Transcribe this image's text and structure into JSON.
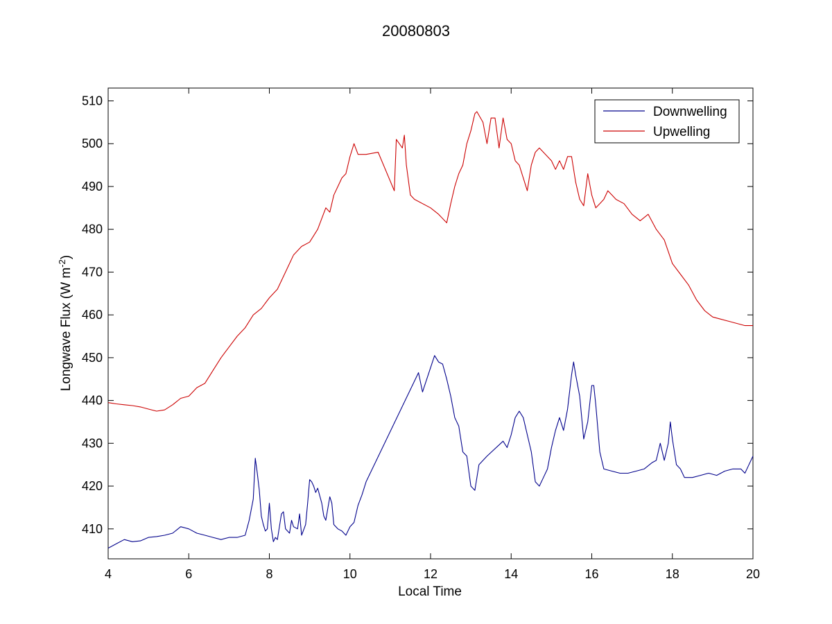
{
  "chart_data": {
    "type": "line",
    "title": "20080803",
    "xlabel": "Local Time",
    "ylabel": "Longwave Flux (W m",
    "ylabel_superscript": "-2",
    "ylabel_suffix": ")",
    "xlim": [
      4,
      20
    ],
    "ylim": [
      403,
      513
    ],
    "xticks": [
      4,
      6,
      8,
      10,
      12,
      14,
      16,
      18,
      20
    ],
    "yticks": [
      410,
      420,
      430,
      440,
      450,
      460,
      470,
      480,
      490,
      500,
      510
    ],
    "grid": false,
    "legend_position": "top-right",
    "series": [
      {
        "name": "Downwelling",
        "color": "#00008b",
        "x": [
          4.0,
          4.2,
          4.4,
          4.6,
          4.8,
          5.0,
          5.2,
          5.4,
          5.6,
          5.8,
          6.0,
          6.2,
          6.4,
          6.6,
          6.8,
          7.0,
          7.2,
          7.4,
          7.5,
          7.6,
          7.65,
          7.7,
          7.75,
          7.8,
          7.85,
          7.9,
          7.95,
          8.0,
          8.05,
          8.1,
          8.15,
          8.2,
          8.3,
          8.35,
          8.4,
          8.5,
          8.55,
          8.6,
          8.7,
          8.75,
          8.8,
          8.9,
          8.95,
          9.0,
          9.05,
          9.1,
          9.15,
          9.2,
          9.3,
          9.35,
          9.4,
          9.5,
          9.55,
          9.6,
          9.7,
          9.8,
          9.9,
          10.0,
          10.1,
          10.2,
          10.3,
          10.4,
          11.7,
          11.8,
          12.1,
          12.2,
          12.3,
          12.4,
          12.5,
          12.6,
          12.7,
          12.8,
          12.9,
          13.0,
          13.1,
          13.2,
          13.4,
          13.8,
          13.9,
          14.0,
          14.1,
          14.2,
          14.3,
          14.4,
          14.5,
          14.6,
          14.7,
          14.8,
          14.9,
          15.0,
          15.1,
          15.2,
          15.3,
          15.4,
          15.5,
          15.55,
          15.6,
          15.7,
          15.8,
          15.9,
          16.0,
          16.05,
          16.1,
          16.2,
          16.3,
          16.5,
          16.7,
          16.9,
          17.1,
          17.3,
          17.5,
          17.6,
          17.7,
          17.8,
          17.9,
          17.95,
          18.0,
          18.1,
          18.2,
          18.3,
          18.5,
          18.7,
          18.9,
          19.1,
          19.3,
          19.5,
          19.7,
          19.8,
          19.9,
          20.0
        ],
        "y": [
          405.5,
          406.5,
          407.5,
          407.0,
          407.2,
          408.0,
          408.2,
          408.5,
          409.0,
          410.5,
          410.0,
          409.0,
          408.5,
          408.0,
          407.5,
          408.0,
          408.0,
          408.5,
          412.0,
          417.0,
          426.5,
          423.0,
          419.0,
          413.0,
          411.0,
          409.5,
          410.0,
          416.0,
          410.0,
          407.0,
          408.0,
          407.5,
          413.5,
          414.0,
          410.0,
          409.0,
          412.0,
          410.5,
          410.0,
          413.5,
          408.5,
          411.0,
          416.0,
          421.5,
          421.0,
          420.0,
          418.5,
          419.5,
          416.0,
          413.0,
          412.0,
          417.5,
          416.0,
          411.0,
          410.0,
          409.5,
          408.5,
          410.5,
          411.5,
          415.5,
          418.0,
          421.0,
          446.5,
          442.0,
          450.5,
          449.0,
          448.5,
          445.0,
          441.0,
          436.0,
          434.0,
          428.0,
          427.0,
          420.0,
          419.0,
          425.0,
          427.0,
          430.5,
          429.0,
          432.0,
          436.0,
          437.5,
          436.0,
          432.0,
          428.0,
          421.0,
          420.0,
          422.0,
          424.0,
          429.0,
          433.0,
          436.0,
          433.0,
          438.0,
          446.0,
          449.0,
          446.0,
          441.0,
          431.0,
          435.0,
          443.5,
          443.5,
          439.0,
          428.0,
          424.0,
          423.5,
          423.0,
          423.0,
          423.5,
          424.0,
          425.5,
          426.0,
          430.0,
          426.0,
          430.0,
          435.0,
          431.0,
          425.0,
          424.0,
          422.0,
          422.0,
          422.5,
          423.0,
          422.5,
          423.5,
          424.0,
          424.0,
          423.0,
          425.0,
          427.0
        ]
      },
      {
        "name": "Upwelling",
        "color": "#cc0000",
        "x": [
          4.0,
          4.2,
          4.4,
          4.6,
          4.8,
          5.0,
          5.2,
          5.4,
          5.6,
          5.8,
          6.0,
          6.2,
          6.4,
          6.6,
          6.8,
          7.0,
          7.2,
          7.4,
          7.6,
          7.8,
          8.0,
          8.2,
          8.4,
          8.6,
          8.8,
          9.0,
          9.2,
          9.4,
          9.5,
          9.6,
          9.7,
          9.8,
          9.9,
          10.0,
          10.1,
          10.2,
          10.4,
          10.7,
          11.1,
          11.15,
          11.3,
          11.35,
          11.4,
          11.5,
          11.6,
          12.0,
          12.2,
          12.4,
          12.5,
          12.6,
          12.7,
          12.8,
          12.9,
          13.0,
          13.1,
          13.15,
          13.3,
          13.4,
          13.5,
          13.6,
          13.7,
          13.8,
          13.9,
          14.0,
          14.1,
          14.2,
          14.3,
          14.4,
          14.5,
          14.6,
          14.7,
          14.8,
          14.9,
          15.0,
          15.1,
          15.2,
          15.3,
          15.4,
          15.5,
          15.6,
          15.7,
          15.8,
          15.9,
          16.0,
          16.1,
          16.2,
          16.3,
          16.4,
          16.5,
          16.6,
          16.8,
          17.0,
          17.2,
          17.4,
          17.6,
          17.8,
          18.0,
          18.2,
          18.4,
          18.6,
          18.8,
          19.0,
          19.2,
          19.4,
          19.6,
          19.8,
          20.0
        ],
        "y": [
          439.5,
          439.2,
          439.0,
          438.8,
          438.5,
          438.0,
          437.5,
          437.8,
          439.0,
          440.5,
          441.0,
          443.0,
          444.0,
          447.0,
          450.0,
          452.5,
          455.0,
          457.0,
          460.0,
          461.5,
          464.0,
          466.0,
          470.0,
          474.0,
          476.0,
          477.0,
          480.0,
          485.0,
          484.0,
          488.0,
          490.0,
          492.0,
          493.0,
          497.0,
          500.0,
          497.5,
          497.5,
          498.0,
          489.0,
          501.0,
          499.0,
          502.0,
          495.0,
          488.0,
          487.0,
          485.0,
          483.5,
          481.5,
          486.0,
          490.0,
          493.0,
          495.0,
          500.0,
          503.0,
          507.0,
          507.5,
          505.0,
          500.0,
          506.0,
          506.0,
          499.0,
          506.0,
          501.0,
          500.0,
          496.0,
          495.0,
          492.0,
          489.0,
          495.0,
          498.0,
          499.0,
          498.0,
          497.0,
          496.0,
          494.0,
          496.0,
          494.0,
          497.0,
          497.0,
          491.0,
          487.0,
          485.5,
          493.0,
          488.0,
          485.0,
          486.0,
          487.0,
          489.0,
          488.0,
          487.0,
          486.0,
          483.5,
          482.0,
          483.5,
          480.0,
          477.5,
          472.0,
          469.5,
          467.0,
          463.5,
          461.0,
          459.5,
          459.0,
          458.5,
          458.0,
          457.5,
          457.5
        ]
      }
    ]
  }
}
